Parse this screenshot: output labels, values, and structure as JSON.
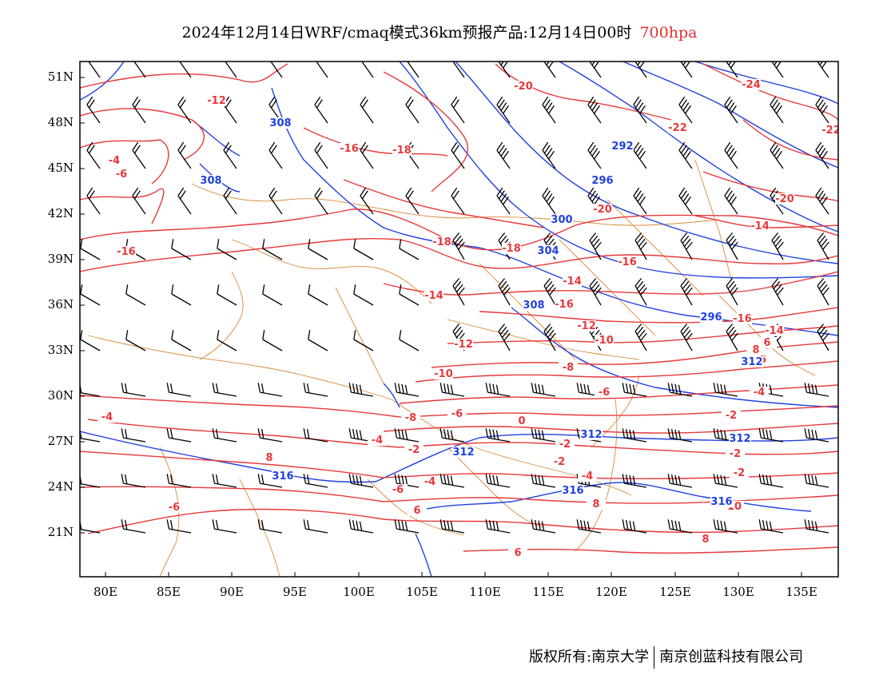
{
  "title": {
    "main": "2024年12月14日WRF/cmaq模式36km预报产品:12月14日00时",
    "level": "700hpa"
  },
  "colors": {
    "temperature": "#e8383a",
    "height": "#2040e0",
    "border": "#d98a3a",
    "wind": "#000000",
    "level_title": "#e03030"
  },
  "axes": {
    "lat_labels": [
      "51N",
      "48N",
      "45N",
      "42N",
      "39N",
      "36N",
      "33N",
      "30N",
      "27N",
      "24N",
      "21N"
    ],
    "lon_labels": [
      "80E",
      "85E",
      "90E",
      "95E",
      "100E",
      "105E",
      "110E",
      "115E",
      "120E",
      "125E",
      "130E",
      "135E"
    ]
  },
  "temperature_labels": [
    "-12",
    "-20",
    "-24",
    "-22",
    "-4",
    "-6",
    "-16",
    "-18",
    "-22",
    "-20",
    "-20",
    "-14",
    "-16",
    "-18",
    "-18",
    "-16",
    "-14",
    "-14",
    "-16",
    "-16",
    "-14",
    "-12",
    "-12",
    "-10",
    "-10",
    "-8",
    "-8",
    "-6",
    "-4",
    "-6",
    "-6",
    "-2",
    "-4",
    "-2",
    "-2",
    "-2",
    "0",
    "-2",
    "-6",
    "-4",
    "-2",
    "-4",
    "-6",
    "-4",
    "10",
    "6",
    "8",
    "8",
    "6",
    "8",
    "6",
    "8"
  ],
  "height_labels": [
    "308",
    "308",
    "292",
    "296",
    "300",
    "304",
    "308",
    "296",
    "312",
    "312",
    "312",
    "312",
    "316",
    "316",
    "316"
  ],
  "footer": {
    "copyright": "版权所有:南京大学",
    "company": "南京创蓝科技有限公司"
  }
}
